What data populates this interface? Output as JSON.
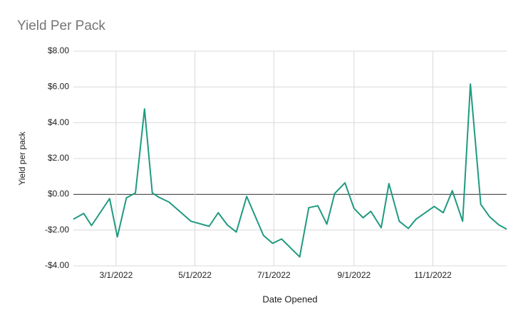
{
  "chart_data": {
    "type": "line",
    "title": "Yield Per Pack",
    "x_label": "Date Opened",
    "y_label": "Yield per pack",
    "x": [
      "2022-01-27",
      "2022-02-04",
      "2022-02-10",
      "2022-02-24",
      "2022-03-02",
      "2022-03-09",
      "2022-03-16",
      "2022-03-23",
      "2022-03-29",
      "2022-04-03",
      "2022-04-11",
      "2022-04-28",
      "2022-05-12",
      "2022-05-19",
      "2022-05-26",
      "2022-06-02",
      "2022-06-10",
      "2022-06-23",
      "2022-06-30",
      "2022-07-07",
      "2022-07-21",
      "2022-07-28",
      "2022-08-04",
      "2022-08-11",
      "2022-08-17",
      "2022-08-25",
      "2022-09-01",
      "2022-09-08",
      "2022-09-14",
      "2022-09-22",
      "2022-09-28",
      "2022-10-06",
      "2022-10-13",
      "2022-10-19",
      "2022-11-02",
      "2022-11-09",
      "2022-11-16",
      "2022-11-24",
      "2022-11-30",
      "2022-12-08",
      "2022-12-15",
      "2022-12-22",
      "2022-12-28"
    ],
    "series": [
      {
        "name": "Yield per pack",
        "color": "#1f9a7f",
        "values": [
          -1.39,
          -1.07,
          -1.75,
          -0.24,
          -2.38,
          -0.2,
          0.08,
          4.77,
          0.08,
          -0.16,
          -0.44,
          -1.51,
          -1.79,
          -1.03,
          -1.71,
          -2.11,
          -0.12,
          -2.3,
          -2.74,
          -2.5,
          -3.5,
          -0.75,
          -0.64,
          -1.67,
          0.04,
          0.64,
          -0.79,
          -1.31,
          -0.95,
          -1.87,
          0.6,
          -1.51,
          -1.91,
          -1.39,
          -0.68,
          -1.03,
          0.2,
          -1.51,
          6.16,
          -0.56,
          -1.27,
          -1.71,
          -1.95
        ]
      }
    ],
    "xlim": [
      "2022-01-27",
      "2022-12-28"
    ],
    "xticks": [
      {
        "value": "2022-03-01",
        "label": "3/1/2022"
      },
      {
        "value": "2022-05-01",
        "label": "5/1/2022"
      },
      {
        "value": "2022-07-01",
        "label": "7/1/2022"
      },
      {
        "value": "2022-09-01",
        "label": "9/1/2022"
      },
      {
        "value": "2022-11-01",
        "label": "11/1/2022"
      }
    ],
    "ylim": [
      -4,
      8
    ],
    "yticks": [
      {
        "value": -4,
        "label": "-$4.00"
      },
      {
        "value": -2,
        "label": "-$2.00"
      },
      {
        "value": 0,
        "label": "$0.00"
      },
      {
        "value": 2,
        "label": "$2.00"
      },
      {
        "value": 4,
        "label": "$4.00"
      },
      {
        "value": 6,
        "label": "$6.00"
      },
      {
        "value": 8,
        "label": "$8.00"
      }
    ],
    "grid": true
  }
}
